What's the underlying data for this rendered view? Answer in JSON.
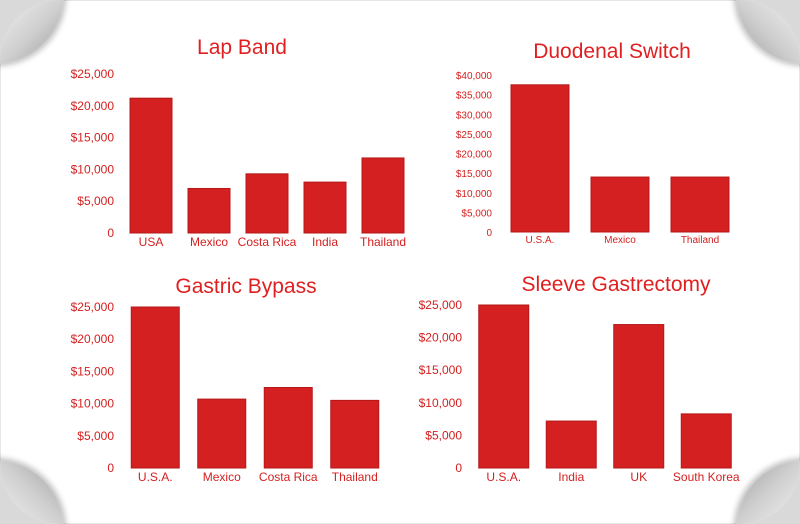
{
  "colors": {
    "bar": "#d42020",
    "title": "#e02020",
    "tick": "#d42020"
  },
  "chart_data": [
    {
      "type": "bar",
      "title": "Lap Band",
      "categories": [
        "USA",
        "Mexico",
        "Costa Rica",
        "India",
        "Thailand"
      ],
      "values": [
        21200,
        7000,
        9300,
        8000,
        11800
      ],
      "yticks": [
        "$25,000",
        "$20,000",
        "$15,000",
        "$10,000",
        "$5,000",
        "0"
      ],
      "ylim": [
        0,
        25000
      ],
      "xlabel": "",
      "ylabel": "",
      "grid": false
    },
    {
      "type": "bar",
      "title": "Duodenal Switch",
      "categories": [
        "U.S.A.",
        "Mexico",
        "Thailand"
      ],
      "values": [
        37500,
        14000,
        14000
      ],
      "yticks": [
        "$40,000",
        "$35,000",
        "$30,000",
        "$25,000",
        "$20,000",
        "$15,000",
        "$10,000",
        "$5,000",
        "0"
      ],
      "ylim": [
        0,
        40000
      ],
      "xlabel": "",
      "ylabel": "",
      "grid": false
    },
    {
      "type": "bar",
      "title": "Gastric Bypass",
      "categories": [
        "U.S.A.",
        "Mexico",
        "Costa Rica",
        "Thailand"
      ],
      "values": [
        25000,
        10700,
        12500,
        10500
      ],
      "yticks": [
        "$25,000",
        "$20,000",
        "$15,000",
        "$10,000",
        "$5,000",
        "0"
      ],
      "ylim": [
        0,
        25000
      ],
      "xlabel": "",
      "ylabel": "",
      "grid": false
    },
    {
      "type": "bar",
      "title": "Sleeve Gastrectomy",
      "categories": [
        "U.S.A.",
        "India",
        "UK",
        "South Korea"
      ],
      "values": [
        25000,
        7200,
        22000,
        8300
      ],
      "yticks": [
        "$25,000",
        "$20,000",
        "$15,000",
        "$10,000",
        "$5,000",
        "0"
      ],
      "ylim": [
        0,
        25000
      ],
      "xlabel": "",
      "ylabel": "",
      "grid": false
    }
  ]
}
